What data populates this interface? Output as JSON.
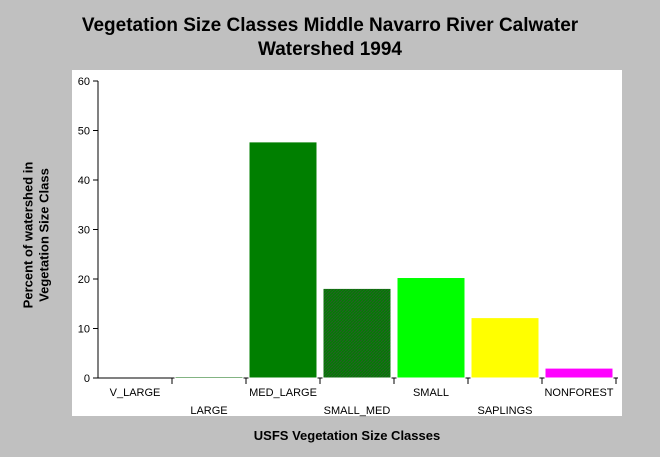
{
  "chart_data": {
    "type": "bar",
    "title_lines": [
      "Vegetation Size Classes Middle Navarro River Calwater",
      "Watershed 1994"
    ],
    "xlabel": "USFS Vegetation Size Classes",
    "ylabel_lines": [
      "Percent of watershed in",
      "Vegetation Size Class"
    ],
    "categories": [
      "V_LARGE",
      "LARGE",
      "MED_LARGE",
      "SMALL_MED",
      "SMALL",
      "SAPLINGS",
      "NONFOREST"
    ],
    "values": [
      0,
      0.3,
      47.7,
      18.1,
      20.3,
      12.2,
      2.0
    ],
    "colors": [
      "#006400",
      "#006400",
      "#007f00",
      "#00a000",
      "#00ff00",
      "#ffff00",
      "#ff00ff"
    ],
    "hatched": [
      false,
      false,
      false,
      true,
      false,
      false,
      false
    ],
    "ylim": [
      0,
      60
    ],
    "yticks": [
      0,
      10,
      20,
      30,
      40,
      50,
      60
    ],
    "grid": false,
    "legend": "none"
  }
}
